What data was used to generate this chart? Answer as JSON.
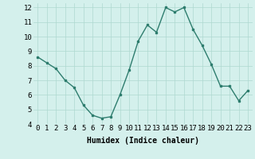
{
  "x": [
    0,
    1,
    2,
    3,
    4,
    5,
    6,
    7,
    8,
    9,
    10,
    11,
    12,
    13,
    14,
    15,
    16,
    17,
    18,
    19,
    20,
    21,
    22,
    23
  ],
  "y": [
    8.6,
    8.2,
    7.8,
    7.0,
    6.5,
    5.3,
    4.6,
    4.4,
    4.5,
    6.0,
    7.7,
    9.7,
    10.8,
    10.3,
    12.0,
    11.7,
    12.0,
    10.5,
    9.4,
    8.1,
    6.6,
    6.6,
    5.6,
    6.3
  ],
  "line_color": "#2e7d6e",
  "marker": "s",
  "marker_size": 2,
  "line_width": 1.0,
  "bg_color": "#d4f0ec",
  "grid_color": "#aed8d0",
  "xlabel": "Humidex (Indice chaleur)",
  "xlabel_fontsize": 7,
  "tick_fontsize": 6.5,
  "xlim": [
    -0.5,
    23.5
  ],
  "ylim": [
    4,
    12.3
  ],
  "yticks": [
    4,
    5,
    6,
    7,
    8,
    9,
    10,
    11,
    12
  ],
  "xticks": [
    0,
    1,
    2,
    3,
    4,
    5,
    6,
    7,
    8,
    9,
    10,
    11,
    12,
    13,
    14,
    15,
    16,
    17,
    18,
    19,
    20,
    21,
    22,
    23
  ]
}
